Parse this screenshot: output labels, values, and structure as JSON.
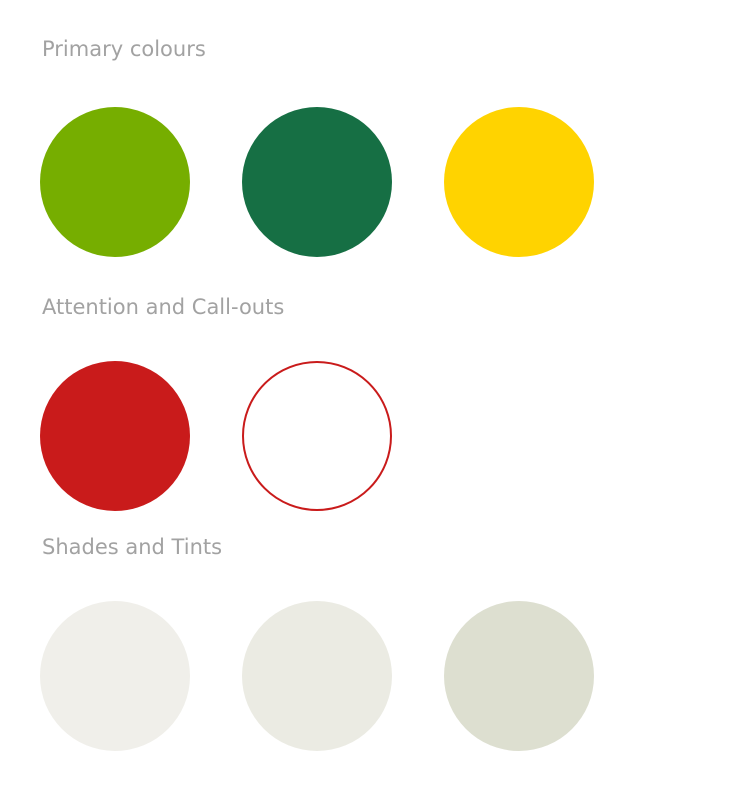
{
  "sections": [
    {
      "title": "Primary colours",
      "swatches": [
        {
          "name": "lime-green",
          "fill": "#76ae00",
          "outline": null
        },
        {
          "name": "dark-green",
          "fill": "#166f44",
          "outline": null
        },
        {
          "name": "yellow",
          "fill": "#ffd300",
          "outline": null
        }
      ]
    },
    {
      "title": "Attention and Call-outs",
      "swatches": [
        {
          "name": "red",
          "fill": "#c91b1b",
          "outline": null
        },
        {
          "name": "red-outline",
          "fill": "#ffffff",
          "outline": "#c91b1b"
        }
      ]
    },
    {
      "title": "Shades and Tints",
      "swatches": [
        {
          "name": "light-shade",
          "fill": "#f0efea",
          "outline": null
        },
        {
          "name": "mid-shade",
          "fill": "#ebebe3",
          "outline": null
        },
        {
          "name": "dark-shade",
          "fill": "#dddfd0",
          "outline": null
        }
      ]
    }
  ]
}
